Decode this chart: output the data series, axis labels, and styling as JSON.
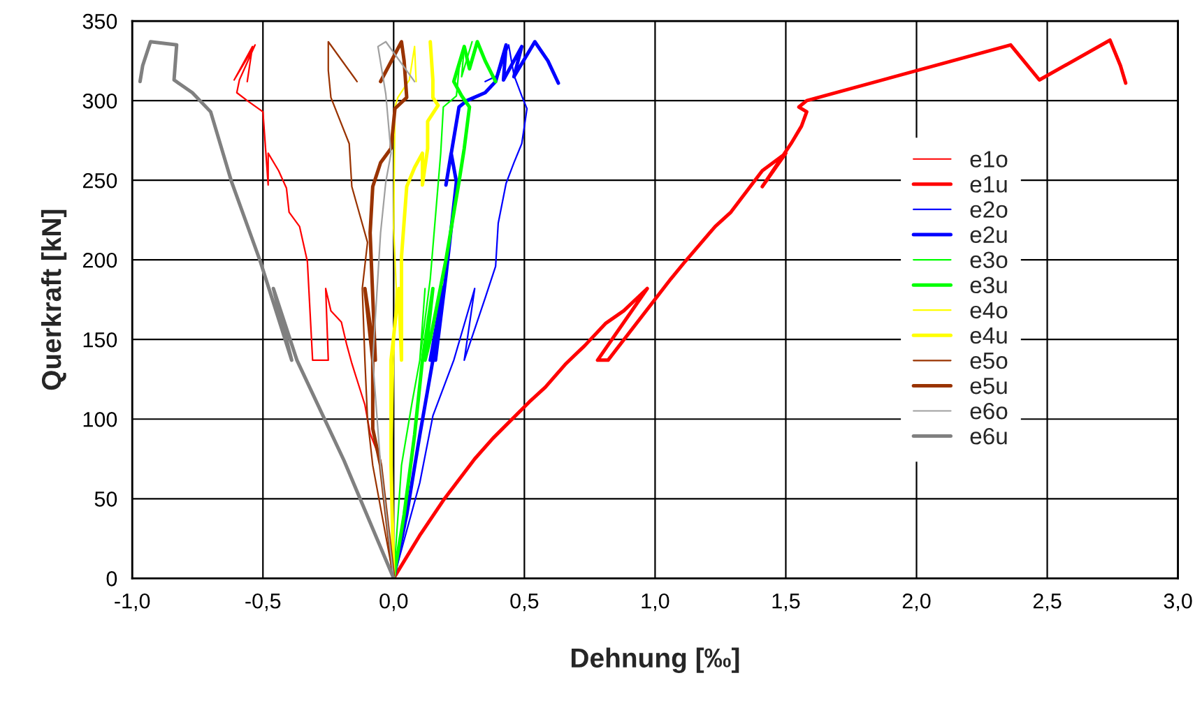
{
  "chart_data": {
    "type": "line",
    "xlabel": "Dehnung [‰]",
    "ylabel": "Querkraft [kN]",
    "xlim": [
      -1.0,
      3.0
    ],
    "xticks": [
      {
        "value": -1.0,
        "label": "-1,0"
      },
      {
        "value": -0.5,
        "label": "-0,5"
      },
      {
        "value": 0.0,
        "label": "0,0"
      },
      {
        "value": 0.5,
        "label": "0,5"
      },
      {
        "value": 1.0,
        "label": "1,0"
      },
      {
        "value": 1.5,
        "label": "1,5"
      },
      {
        "value": 2.0,
        "label": "2,0"
      },
      {
        "value": 2.5,
        "label": "2,5"
      },
      {
        "value": 3.0,
        "label": "3,0"
      }
    ],
    "ylim": [
      0,
      350
    ],
    "yticks": [
      0,
      50,
      100,
      150,
      200,
      250,
      300,
      350
    ],
    "grid": true,
    "legend": "right",
    "line_style": "solid",
    "series": [
      {
        "name": "e1o",
        "color": "#ff0000",
        "x": [
          0,
          -0.05,
          -0.09,
          -0.11,
          -0.16,
          -0.18,
          -0.2,
          -0.24,
          -0.26,
          -0.25,
          -0.31,
          -0.33,
          -0.36,
          -0.4,
          -0.41,
          -0.44,
          -0.48,
          -0.48,
          -0.5,
          -0.56,
          -0.6,
          -0.59,
          -0.53,
          -0.61,
          -0.54,
          -0.56
        ],
        "values": [
          0,
          74,
          91,
          109,
          135,
          147,
          161,
          168,
          182,
          137,
          137,
          199,
          221,
          230,
          245,
          256,
          267,
          247,
          293,
          300,
          305,
          313,
          335,
          313,
          334,
          312
        ]
      },
      {
        "name": "e1u",
        "color": "#ff0000",
        "x": [
          0,
          0.1,
          0.19,
          0.31,
          0.38,
          0.52,
          0.58,
          0.66,
          0.73,
          0.81,
          0.88,
          0.97,
          0.78,
          0.82,
          1.06,
          1.11,
          1.23,
          1.29,
          1.41,
          1.5,
          1.41,
          1.52,
          1.56,
          1.58,
          1.55,
          1.58,
          2.36,
          2.47,
          2.74,
          2.78,
          2.8
        ],
        "values": [
          0,
          27,
          49,
          75,
          88,
          111,
          120,
          135,
          146,
          160,
          168,
          182,
          137,
          137,
          188,
          198,
          221,
          230,
          256,
          267,
          246,
          273,
          284,
          293,
          296,
          300,
          335,
          313,
          338,
          322,
          311
        ]
      },
      {
        "name": "e2o",
        "color": "#0000ff",
        "x": [
          0,
          0.1,
          0.15,
          0.23,
          0.31,
          0.27,
          0.35,
          0.39,
          0.4,
          0.43,
          0.46,
          0.49,
          0.51,
          0.49,
          0.46,
          0.49,
          0.46,
          0.44,
          0.4,
          0.35
        ],
        "values": [
          0,
          60,
          102,
          137,
          182,
          137,
          176,
          196,
          223,
          248,
          261,
          273,
          295,
          303,
          316,
          334,
          316,
          335,
          316,
          312
        ]
      },
      {
        "name": "e2u",
        "color": "#0000ff",
        "x": [
          0,
          0.05,
          0.1,
          0.15,
          0.19,
          0.14,
          0.16,
          0.2,
          0.24,
          0.22,
          0.2,
          0.25,
          0.28,
          0.35,
          0.39,
          0.43,
          0.42,
          0.49,
          0.46,
          0.54,
          0.59,
          0.63
        ],
        "values": [
          0,
          40,
          90,
          137,
          183,
          137,
          137,
          190,
          249,
          267,
          247,
          296,
          300,
          305,
          312,
          335,
          313,
          334,
          315,
          337,
          325,
          311
        ]
      },
      {
        "name": "e3o",
        "color": "#00ff00",
        "x": [
          0,
          0.03,
          0.07,
          0.1,
          0.12,
          0.1,
          0.14,
          0.18,
          0.19,
          0.24,
          0.25,
          0.27,
          0.26,
          0.3
        ],
        "values": [
          0,
          71,
          110,
          137,
          182,
          137,
          188,
          267,
          296,
          303,
          320,
          334,
          315,
          337
        ]
      },
      {
        "name": "e3u",
        "color": "#00ff00",
        "x": [
          0,
          0.04,
          0.08,
          0.11,
          0.15,
          0.12,
          0.14,
          0.2,
          0.25,
          0.27,
          0.29,
          0.26,
          0.23,
          0.27,
          0.29,
          0.32,
          0.35,
          0.39
        ],
        "values": [
          0,
          40,
          90,
          137,
          182,
          137,
          150,
          200,
          249,
          270,
          296,
          303,
          312,
          334,
          320,
          337,
          325,
          312
        ]
      },
      {
        "name": "e4o",
        "color": "#ffff00",
        "x": [
          0,
          -0.01,
          0.0,
          0.01,
          0.0,
          0.005,
          0.016,
          0.06,
          0.08,
          0.086
        ],
        "values": [
          0,
          60,
          137,
          182,
          220,
          296,
          302,
          313,
          334,
          312
        ]
      },
      {
        "name": "e4u",
        "color": "#ffff00",
        "x": [
          0,
          -0.01,
          -0.01,
          0.02,
          0.03,
          0.03,
          0.05,
          0.08,
          0.11,
          0.11,
          0.13,
          0.13,
          0.17,
          0.15,
          0.15,
          0.14
        ],
        "values": [
          0,
          71,
          137,
          182,
          137,
          202,
          246,
          258,
          267,
          247,
          270,
          287,
          297,
          302,
          313,
          337
        ]
      },
      {
        "name": "e5o",
        "color": "#993300",
        "x": [
          0,
          -0.08,
          -0.1,
          -0.11,
          -0.12,
          -0.1,
          -0.16,
          -0.17,
          -0.24,
          -0.25,
          -0.25,
          -0.14
        ],
        "values": [
          0,
          71,
          100,
          137,
          182,
          211,
          246,
          273,
          302,
          319,
          337,
          312
        ]
      },
      {
        "name": "e5u",
        "color": "#993300",
        "x": [
          0,
          -0.05,
          -0.08,
          -0.08,
          -0.11,
          -0.07,
          -0.09,
          -0.08,
          -0.05,
          -0.01,
          0.005,
          0.05,
          0.04,
          0.03,
          -0.05
        ],
        "values": [
          0,
          71,
          94,
          137,
          182,
          137,
          217,
          246,
          261,
          270,
          295,
          302,
          325,
          337,
          312
        ]
      },
      {
        "name": "e6o",
        "color": "#a0a0a0",
        "x": [
          0,
          -0.05,
          -0.08,
          -0.05,
          -0.03,
          -0.01,
          -0.03,
          -0.06,
          -0.03,
          0.08
        ],
        "values": [
          0,
          71,
          137,
          217,
          249,
          267,
          304,
          334,
          337,
          312
        ]
      },
      {
        "name": "e6u",
        "color": "#808080",
        "x": [
          0,
          -0.19,
          -0.37,
          -0.46,
          -0.39,
          -0.51,
          -0.62,
          -0.7,
          -0.77,
          -0.84,
          -0.83,
          -0.93,
          -0.96,
          -0.97
        ],
        "values": [
          0,
          74,
          137,
          182,
          137,
          199,
          249,
          293,
          305,
          313,
          335,
          337,
          322,
          312
        ]
      }
    ]
  }
}
